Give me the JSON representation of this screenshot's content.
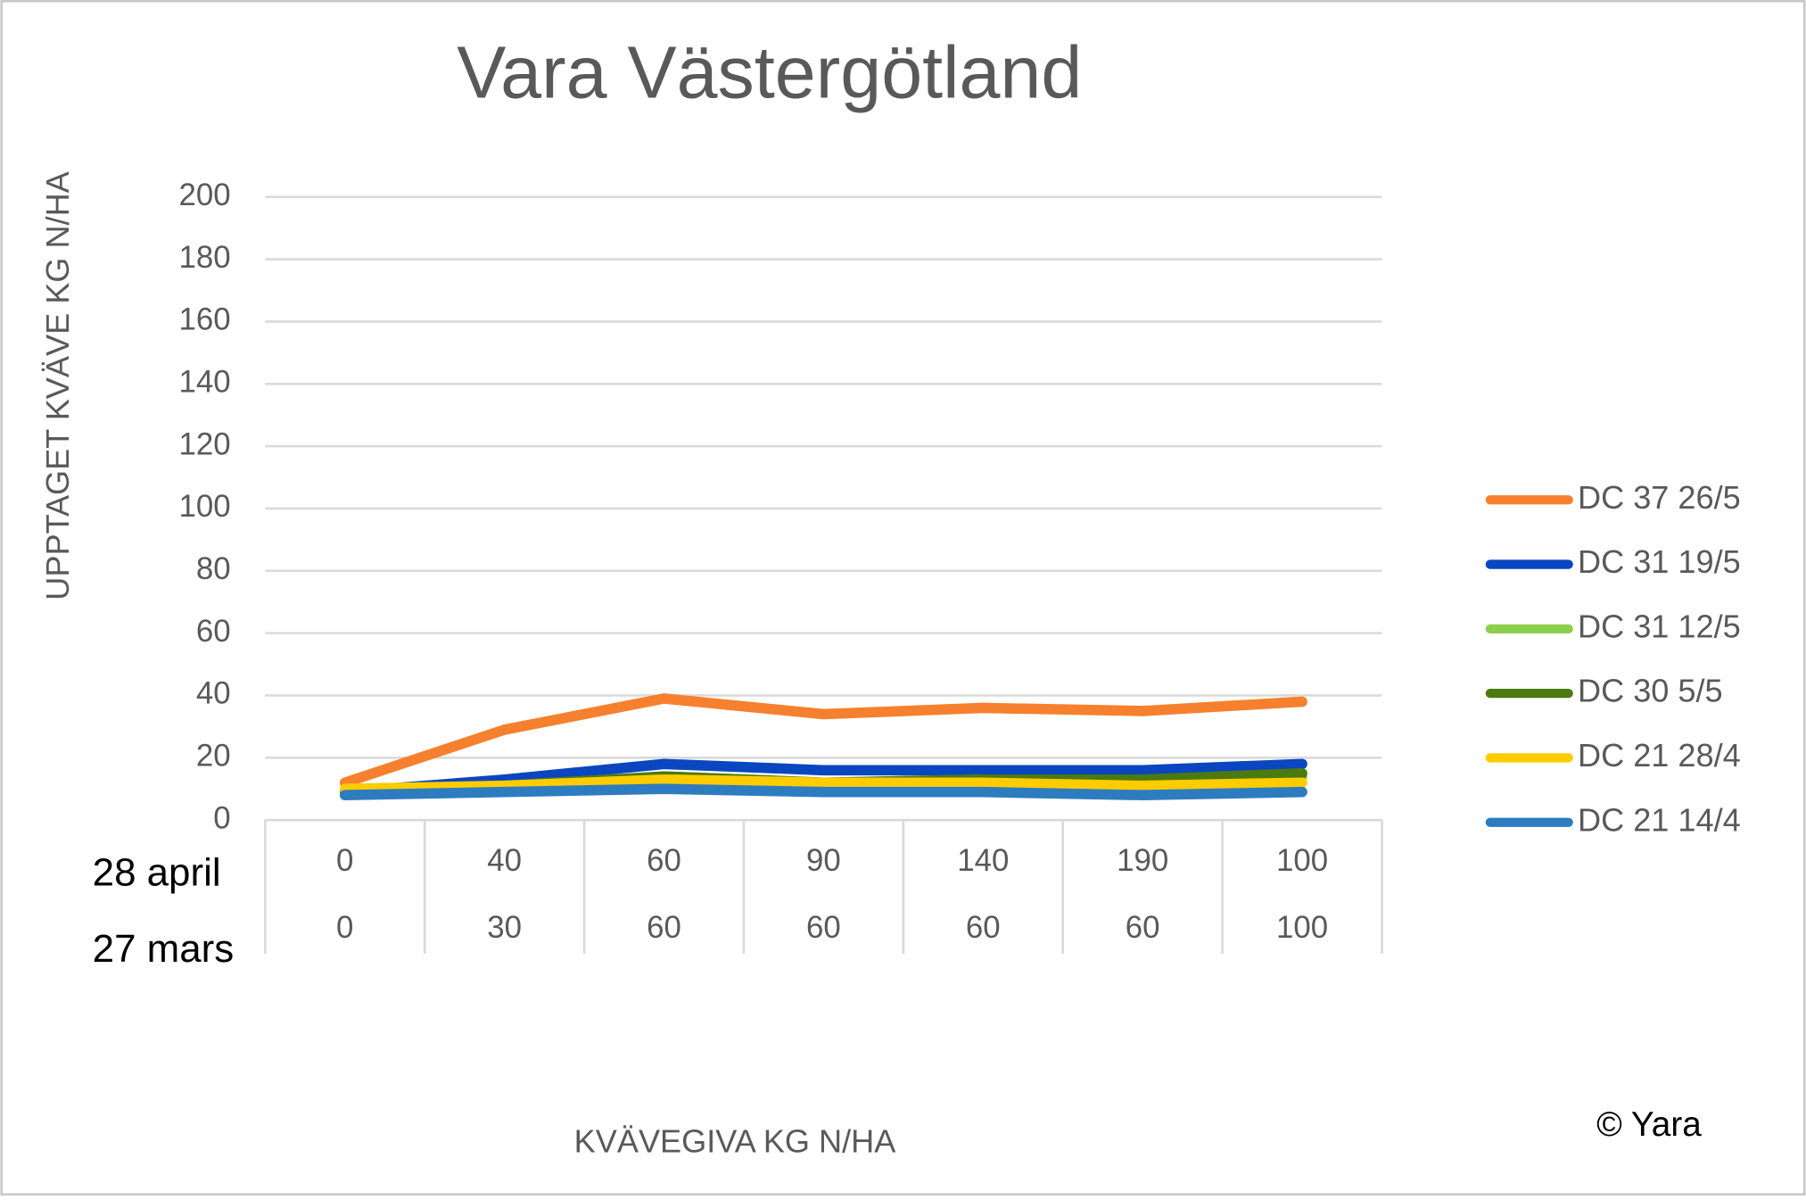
{
  "chart_data": {
    "type": "line",
    "title": "Vara Västergötland",
    "y_label": "UPPTAGET KVÄVE KG N/HA",
    "x_label": "KVÄVEGIVA  KG N/HA",
    "note": "© Yara",
    "category_levels": [
      {
        "name": "28 april",
        "labels": [
          0,
          40,
          60,
          90,
          140,
          190,
          100
        ]
      },
      {
        "name": "27 mars",
        "labels": [
          0,
          30,
          60,
          60,
          60,
          60,
          100
        ]
      }
    ],
    "series": [
      {
        "name": "DC 37 26/5",
        "color": "#f6802d",
        "values": [
          12,
          29,
          39,
          34,
          36,
          35,
          38
        ]
      },
      {
        "name": "DC 31 19/5",
        "color": "#0a46c0",
        "values": [
          9,
          13,
          18,
          16,
          16,
          16,
          18
        ]
      },
      {
        "name": "DC 31 12/5",
        "color": "#8ccf4d",
        "values": [
          8,
          11,
          14,
          12,
          13,
          12,
          14
        ]
      },
      {
        "name": "DC 30 5/5",
        "color": "#4b7a10",
        "values": [
          9,
          11,
          14,
          12,
          13,
          13,
          15
        ]
      },
      {
        "name": "DC 21 28/4",
        "color": "#ffcc00",
        "values": [
          10,
          11,
          13,
          12,
          12,
          11,
          12
        ]
      },
      {
        "name": "DC 21 14/4",
        "color": "#2e7cc0",
        "values": [
          8,
          9,
          10,
          9,
          9,
          8,
          9
        ]
      }
    ],
    "ylim": [
      0,
      200
    ],
    "yticks": [
      0,
      20,
      40,
      60,
      80,
      100,
      120,
      140,
      160,
      180,
      200
    ],
    "grid": true,
    "legend": "right"
  }
}
